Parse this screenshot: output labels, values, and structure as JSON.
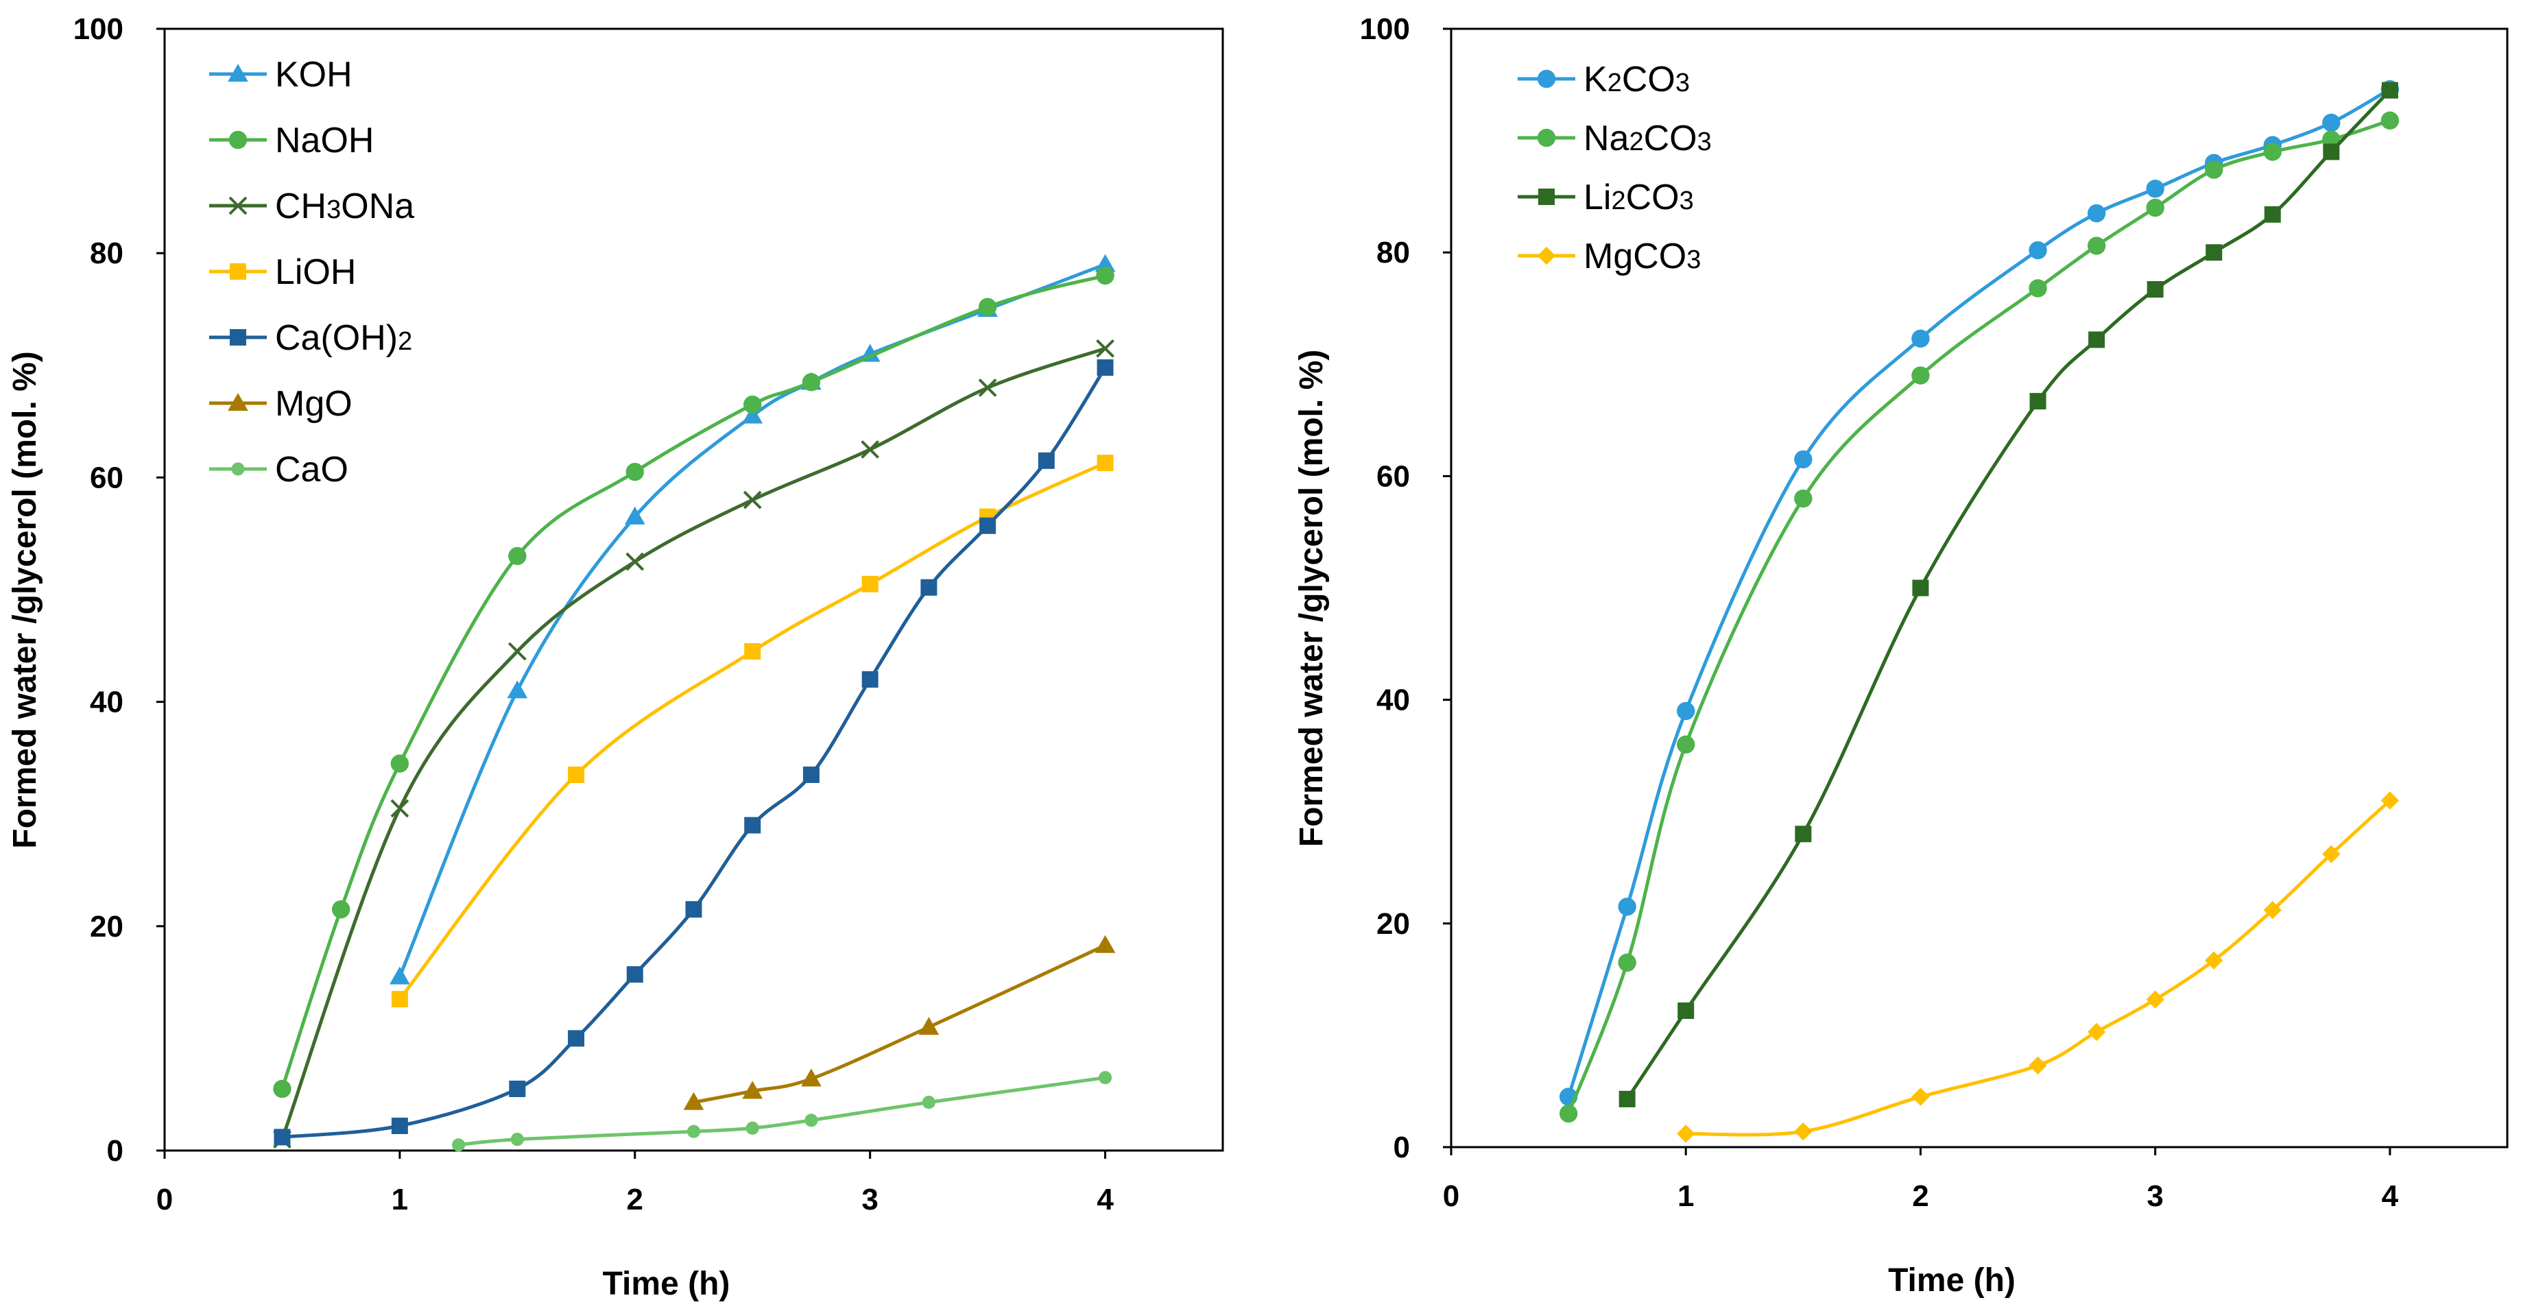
{
  "chart_data": [
    {
      "type": "line",
      "xlabel": "Time (h)",
      "ylabel": "Formed water /glycerol (mol. %)",
      "xlim": [
        0,
        4.5
      ],
      "ylim": [
        0,
        100
      ],
      "xticks": [
        0,
        1,
        2,
        3,
        4
      ],
      "yticks": [
        0,
        20,
        40,
        60,
        80,
        100
      ],
      "legend_position": "top-left",
      "series": [
        {
          "name": "KOH",
          "label_parts": [
            {
              "t": "KOH"
            }
          ],
          "color": "#2E9BDB",
          "marker": "triangle",
          "x": [
            1,
            1.5,
            2,
            2.5,
            2.75,
            3,
            3.5,
            4
          ],
          "y": [
            15.5,
            41,
            56.5,
            65.5,
            68.5,
            71,
            75,
            79
          ]
        },
        {
          "name": "NaOH",
          "label_parts": [
            {
              "t": "NaOH"
            }
          ],
          "color": "#4DB34A",
          "marker": "circle",
          "x": [
            0.5,
            0.75,
            1,
            1.5,
            2,
            2.5,
            2.75,
            3.5,
            4
          ],
          "y": [
            5.5,
            21.5,
            34.5,
            53,
            60.5,
            66.5,
            68.5,
            75.2,
            78
          ]
        },
        {
          "name": "CH3ONa",
          "label_parts": [
            {
              "t": "CH"
            },
            {
              "t": "3",
              "sub": true
            },
            {
              "t": "ONa"
            }
          ],
          "color": "#3D6B2E",
          "marker": "cross",
          "x": [
            0.5,
            1,
            1.5,
            2,
            2.5,
            3,
            3.5,
            4
          ],
          "y": [
            1,
            30.5,
            44.5,
            52.5,
            58,
            62.5,
            68,
            71.5
          ]
        },
        {
          "name": "LiOH",
          "label_parts": [
            {
              "t": "LiOH"
            }
          ],
          "color": "#FFC000",
          "marker": "square",
          "x": [
            1,
            1.75,
            2.5,
            3,
            3.5,
            4
          ],
          "y": [
            13.5,
            33.5,
            44.5,
            50.5,
            56.5,
            61.3
          ]
        },
        {
          "name": "Ca(OH)2",
          "label_parts": [
            {
              "t": " Ca(OH)"
            },
            {
              "t": "2",
              "sub": true
            }
          ],
          "color": "#1F5F99",
          "marker": "square",
          "x": [
            0.5,
            1,
            1.5,
            1.75,
            2,
            2.25,
            2.5,
            2.75,
            3,
            3.25,
            3.5,
            3.75,
            4
          ],
          "y": [
            1.2,
            2.2,
            5.5,
            10,
            15.7,
            21.5,
            29,
            33.5,
            42,
            50.2,
            55.7,
            61.5,
            69.8
          ]
        },
        {
          "name": "MgO",
          "label_parts": [
            {
              "t": "MgO"
            }
          ],
          "color": "#A87A00",
          "marker": "triangle",
          "x": [
            2.25,
            2.5,
            2.75,
            3.25,
            4
          ],
          "y": [
            4.3,
            5.3,
            6.4,
            11,
            18.3
          ]
        },
        {
          "name": "CaO",
          "label_parts": [
            {
              "t": "CaO"
            }
          ],
          "color": "#6EC46A",
          "marker": "dot",
          "x": [
            1.25,
            1.5,
            2.25,
            2.5,
            2.75,
            3.25,
            4
          ],
          "y": [
            0.5,
            1,
            1.7,
            2,
            2.7,
            4.3,
            6.5
          ]
        }
      ]
    },
    {
      "type": "line",
      "xlabel": "Time (h)",
      "ylabel": "Formed water /glycerol (mol. %)",
      "xlim": [
        0,
        4.5
      ],
      "ylim": [
        0,
        100
      ],
      "xticks": [
        0,
        1,
        2,
        3,
        4
      ],
      "yticks": [
        0,
        20,
        40,
        60,
        80,
        100
      ],
      "legend_position": "top-left",
      "series": [
        {
          "name": "K2CO3",
          "label_parts": [
            {
              "t": "K"
            },
            {
              "t": "2",
              "sub": true
            },
            {
              "t": "CO"
            },
            {
              "t": "3",
              "sub": true
            }
          ],
          "color": "#2E9BDB",
          "marker": "circle",
          "x": [
            0.5,
            0.75,
            1,
            1.5,
            2,
            2.5,
            2.75,
            3,
            3.25,
            3.5,
            3.75,
            4
          ],
          "y": [
            4.5,
            21.5,
            39,
            61.5,
            72.3,
            80.2,
            83.5,
            85.7,
            88,
            89.6,
            91.6,
            94.6
          ]
        },
        {
          "name": "Na2CO3",
          "label_parts": [
            {
              "t": "Na"
            },
            {
              "t": "2",
              "sub": true
            },
            {
              "t": "CO"
            },
            {
              "t": "3",
              "sub": true
            }
          ],
          "color": "#4DB34A",
          "marker": "circle",
          "x": [
            0.5,
            0.75,
            1,
            1.5,
            2,
            2.5,
            2.75,
            3,
            3.25,
            3.5,
            3.75,
            4
          ],
          "y": [
            3,
            16.5,
            36,
            58,
            69,
            76.8,
            80.6,
            84,
            87.4,
            89,
            90.1,
            91.8
          ]
        },
        {
          "name": "Li2CO3",
          "label_parts": [
            {
              "t": "Li"
            },
            {
              "t": "2",
              "sub": true
            },
            {
              "t": "CO"
            },
            {
              "t": "3",
              "sub": true
            }
          ],
          "color": "#2D6A22",
          "marker": "square",
          "x": [
            0.75,
            1,
            1.5,
            2,
            2.5,
            2.75,
            3,
            3.25,
            3.5,
            3.75,
            4
          ],
          "y": [
            4.3,
            12.2,
            28,
            50,
            66.7,
            72.2,
            76.7,
            80,
            83.4,
            89,
            94.5
          ]
        },
        {
          "name": "MgCO3",
          "label_parts": [
            {
              "t": "MgCO"
            },
            {
              "t": "3",
              "sub": true
            }
          ],
          "color": "#FFC000",
          "marker": "diamond",
          "x": [
            1,
            1.5,
            2,
            2.5,
            2.75,
            3,
            3.25,
            3.5,
            3.75,
            4
          ],
          "y": [
            1.2,
            1.4,
            4.5,
            7.3,
            10.3,
            13.2,
            16.7,
            21.2,
            26.2,
            31
          ]
        }
      ]
    }
  ]
}
